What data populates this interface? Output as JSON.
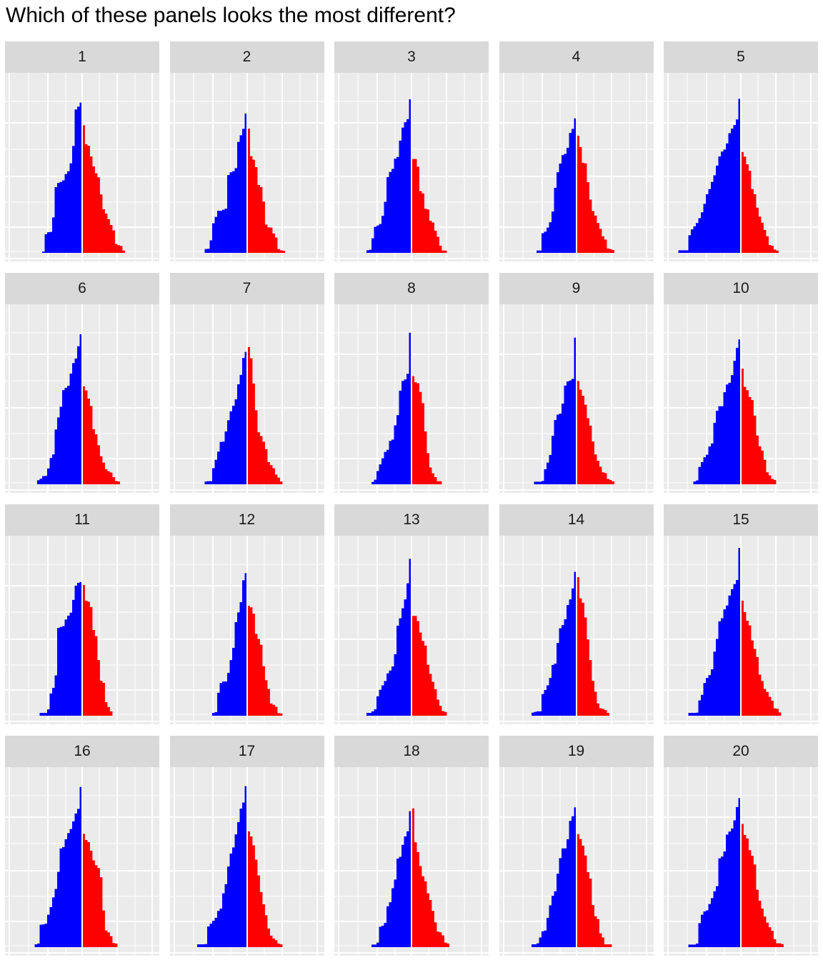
{
  "title": "Which of these panels looks the most different?",
  "colors": {
    "negative": "#0000ff",
    "positive": "#ff0000",
    "panel_bg": "#ebebeb",
    "strip_bg": "#d9d9d9",
    "grid": "#ffffff"
  },
  "chart_data": {
    "type": "bar",
    "layout": "20 small-multiple panels, 4 rows x 5 columns",
    "xlabel": "",
    "ylabel": "",
    "axis_ticks": "none",
    "grid": true,
    "split_at": 0,
    "panels": [
      {
        "label": "1",
        "negative": [
          0.5,
          7.3,
          8.1,
          8.2,
          13.9,
          25.8,
          27.4,
          27.8,
          28.4,
          30.9,
          32.0,
          35.1,
          41.9,
          56.2,
          57.3,
          58.9
        ],
        "positive": [
          50.0,
          42.6,
          42.0,
          37.8,
          33.9,
          31.2,
          29.6,
          22.9,
          17.1,
          15.4,
          13.2,
          10.9,
          8.8,
          3.5,
          3.0,
          2.7,
          0.9
        ]
      },
      {
        "label": "2",
        "negative": [
          1.5,
          1.6,
          4.9,
          11.6,
          14.1,
          16.5,
          16.5,
          16.9,
          17.3,
          30.5,
          31.6,
          32.0,
          33.2,
          43.5,
          46.1,
          48.6,
          54.6
        ],
        "positive": [
          48.7,
          37.9,
          36.5,
          33.6,
          26.6,
          25.8,
          20.1,
          11.1,
          10.0,
          9.9,
          7.6,
          6.0,
          1.5,
          1.0,
          0.8
        ]
      },
      {
        "label": "3",
        "negative": [
          1.0,
          1.2,
          5.7,
          10.2,
          10.7,
          11.3,
          14.5,
          20.0,
          29.7,
          31.7,
          32.9,
          36.9,
          37.6,
          44.0,
          49.1,
          51.2,
          52.4,
          60.2
        ],
        "positive": [
          36.8,
          36.8,
          33.8,
          24.2,
          23.3,
          17.3,
          17.0,
          12.6,
          11.9,
          8.7,
          6.3,
          2.8,
          0.9,
          0.9
        ]
      },
      {
        "label": "4",
        "negative": [
          0.9,
          0.9,
          7.7,
          8.3,
          9.9,
          12.0,
          16.2,
          25.5,
          31.6,
          35.0,
          38.3,
          38.8,
          41.2,
          47.0,
          48.6,
          52.7
        ],
        "positive": [
          45.9,
          41.5,
          35.3,
          35.1,
          27.7,
          20.9,
          16.4,
          14.6,
          11.7,
          9.4,
          6.5,
          5.2,
          1.7,
          1.5,
          1.1
        ]
      },
      {
        "label": "5",
        "negative": [
          1.0,
          1.0,
          1.0,
          1.0,
          6.9,
          9.2,
          10.4,
          11.7,
          13.6,
          15.9,
          19.2,
          23.0,
          25.0,
          27.8,
          30.4,
          34.2,
          37.8,
          39.7,
          40.5,
          42.9,
          46.9,
          48.7,
          50.1,
          52.3,
          60.4
        ],
        "positive": [
          39.5,
          37.7,
          34.7,
          32.2,
          25.0,
          23.0,
          17.7,
          14.2,
          11.8,
          9.0,
          6.5,
          3.1,
          2.8,
          1.3,
          0.9
        ]
      },
      {
        "label": "6",
        "negative": [
          1.6,
          2.2,
          3.2,
          3.3,
          6.2,
          10.3,
          11.7,
          21.5,
          26.2,
          30.4,
          36.9,
          37.8,
          38.6,
          43.4,
          47.5,
          49.3,
          54.1,
          58.8
        ],
        "positive": [
          38.4,
          36.8,
          33.6,
          30.7,
          21.6,
          19.6,
          15.3,
          11.0,
          8.5,
          5.9,
          5.1,
          4.6,
          2.8,
          1.3,
          1.1
        ]
      },
      {
        "label": "7",
        "negative": [
          1.1,
          1.2,
          1.2,
          6.3,
          9.6,
          12.8,
          16.6,
          16.7,
          20.7,
          25.1,
          28.6,
          30.8,
          33.3,
          39.2,
          42.9,
          49.5,
          51.9
        ],
        "positive": [
          53.8,
          49.4,
          39.5,
          29.0,
          20.4,
          18.9,
          16.7,
          13.8,
          8.7,
          7.5,
          6.3,
          3.8,
          2.6,
          1.1
        ]
      },
      {
        "label": "8",
        "negative": [
          0.9,
          1.8,
          5.2,
          7.8,
          10.2,
          12.7,
          13.5,
          17.0,
          17.5,
          23.1,
          27.1,
          36.7,
          40.5,
          41.1,
          43.3,
          59.4
        ],
        "positive": [
          42.4,
          40.0,
          39.6,
          36.2,
          31.8,
          20.7,
          12.2,
          6.6,
          4.3,
          2.8,
          1.2,
          1.2
        ]
      },
      {
        "label": "9",
        "negative": [
          1.0,
          1.0,
          1.0,
          1.3,
          5.9,
          8.5,
          11.5,
          19.0,
          25.2,
          27.3,
          27.7,
          31.6,
          38.7,
          40.3,
          40.7,
          41.3,
          57.5
        ],
        "positive": [
          40.5,
          37.1,
          34.7,
          31.2,
          25.9,
          23.0,
          16.8,
          11.7,
          9.2,
          6.9,
          4.7,
          4.4,
          2.1,
          1.7,
          1.1
        ]
      },
      {
        "label": "10",
        "negative": [
          1.1,
          1.5,
          6.8,
          8.7,
          10.6,
          11.6,
          14.8,
          16.0,
          24.1,
          28.8,
          30.6,
          30.6,
          36.1,
          39.1,
          39.8,
          42.8,
          48.4,
          53.5,
          56.8
        ],
        "positive": [
          45.3,
          38.2,
          36.9,
          34.2,
          33.0,
          26.9,
          19.1,
          14.9,
          13.2,
          9.6,
          4.7,
          3.5,
          2.1,
          1.7
        ]
      },
      {
        "label": "11",
        "negative": [
          1.1,
          1.1,
          1.1,
          2.5,
          8.7,
          10.9,
          15.8,
          34.4,
          34.8,
          35.1,
          37.7,
          39.2,
          40.4,
          45.4,
          51.0,
          52.1,
          52.4
        ],
        "positive": [
          51.2,
          45.1,
          44.7,
          42.6,
          33.6,
          31.2,
          21.8,
          13.7,
          12.9,
          5.3,
          3.4,
          1.7
        ]
      },
      {
        "label": "12",
        "negative": [
          1.1,
          1.4,
          9.0,
          12.8,
          13.4,
          13.4,
          16.8,
          21.8,
          26.6,
          36.7,
          40.5,
          44.5,
          53.1,
          55.9
        ],
        "positive": [
          43.1,
          42.5,
          40.0,
          32.1,
          30.1,
          27.8,
          19.4,
          13.9,
          10.5,
          4.8,
          4.3,
          3.5,
          1.0,
          0.9
        ]
      },
      {
        "label": "13",
        "negative": [
          1.1,
          1.1,
          1.7,
          2.5,
          7.6,
          10.2,
          11.9,
          13.6,
          16.6,
          17.7,
          19.3,
          24.1,
          35.3,
          38.2,
          42.1,
          45.6,
          51.9,
          61.5
        ],
        "positive": [
          39.1,
          39.1,
          37.1,
          32.6,
          29.3,
          27.5,
          20.0,
          16.4,
          13.3,
          10.4,
          6.3,
          3.9,
          1.8,
          1.5
        ]
      },
      {
        "label": "14",
        "negative": [
          1.2,
          1.5,
          1.7,
          1.7,
          8.5,
          10.1,
          11.9,
          14.8,
          19.9,
          20.4,
          28.5,
          34.3,
          35.5,
          37.8,
          43.4,
          45.6,
          49.9,
          56.4
        ],
        "positive": [
          54.3,
          46.0,
          44.3,
          38.5,
          29.9,
          21.8,
          13.7,
          9.4,
          4.8,
          2.9,
          2.7,
          2.2,
          1.1
        ]
      },
      {
        "label": "15",
        "negative": [
          1.1,
          1.1,
          1.1,
          1.2,
          6.0,
          8.2,
          12.8,
          14.8,
          15.9,
          18.2,
          25.1,
          30.1,
          37.0,
          38.2,
          41.7,
          43.2,
          47.1,
          49.6,
          51.6,
          53.2,
          65.8
        ],
        "positive": [
          45.1,
          40.6,
          37.2,
          35.4,
          29.5,
          26.2,
          23.0,
          16.1,
          13.6,
          10.5,
          9.3,
          7.4,
          5.9,
          2.9,
          2.7,
          1.3
        ]
      },
      {
        "label": "16",
        "negative": [
          1.1,
          1.4,
          8.8,
          8.9,
          9.2,
          12.7,
          15.7,
          19.5,
          22.8,
          29.5,
          38.7,
          39.2,
          42.3,
          44.7,
          46.3,
          49.3,
          52.4,
          54.2,
          62.8
        ],
        "positive": [
          44.4,
          42.0,
          41.2,
          37.8,
          34.0,
          32.1,
          31.0,
          27.4,
          14.4,
          6.5,
          5.8,
          4.3,
          1.6,
          1.4
        ]
      },
      {
        "label": "17",
        "negative": [
          1.1,
          1.1,
          1.1,
          1.2,
          8.1,
          9.2,
          10.3,
          11.5,
          14.2,
          15.1,
          21.1,
          24.7,
          31.6,
          36.7,
          39.1,
          44.2,
          49.0,
          54.3,
          56.7,
          63.1
        ],
        "positive": [
          45.4,
          43.4,
          39.9,
          34.3,
          28.1,
          21.6,
          16.8,
          12.5,
          7.3,
          4.5,
          3.4,
          2.7,
          1.4,
          1.1
        ]
      },
      {
        "label": "18",
        "negative": [
          1.0,
          1.0,
          1.8,
          8.0,
          8.4,
          9.5,
          16.0,
          17.6,
          23.1,
          26.5,
          34.7,
          35.4,
          40.1,
          43.4,
          45.4,
          53.3
        ],
        "positive": [
          54.4,
          41.1,
          37.3,
          31.8,
          27.8,
          25.8,
          21.1,
          18.5,
          14.2,
          9.7,
          6.1,
          5.8,
          4.6,
          1.8,
          1.4
        ]
      },
      {
        "label": "19",
        "negative": [
          1.1,
          1.1,
          1.5,
          3.8,
          6.2,
          6.5,
          11.5,
          16.4,
          20.1,
          21.9,
          28.8,
          34.9,
          38.7,
          38.7,
          42.3,
          49.5,
          51.3,
          54.8
        ],
        "positive": [
          44.3,
          42.4,
          39.8,
          35.9,
          29.4,
          26.9,
          16.5,
          12.1,
          11.0,
          5.4,
          3.8,
          1.1,
          1.1,
          1.1
        ]
      },
      {
        "label": "20",
        "negative": [
          1.0,
          1.0,
          1.0,
          1.4,
          9.4,
          12.7,
          14.0,
          14.4,
          16.9,
          19.2,
          21.9,
          23.9,
          34.8,
          35.5,
          37.5,
          44.1,
          45.3,
          46.5,
          49.7,
          54.9,
          58.4
        ],
        "positive": [
          48.3,
          44.0,
          42.6,
          38.0,
          35.8,
          32.4,
          22.5,
          18.2,
          15.1,
          12.0,
          9.6,
          7.8,
          6.4,
          3.1,
          1.5,
          1.5,
          1.2
        ]
      }
    ]
  }
}
